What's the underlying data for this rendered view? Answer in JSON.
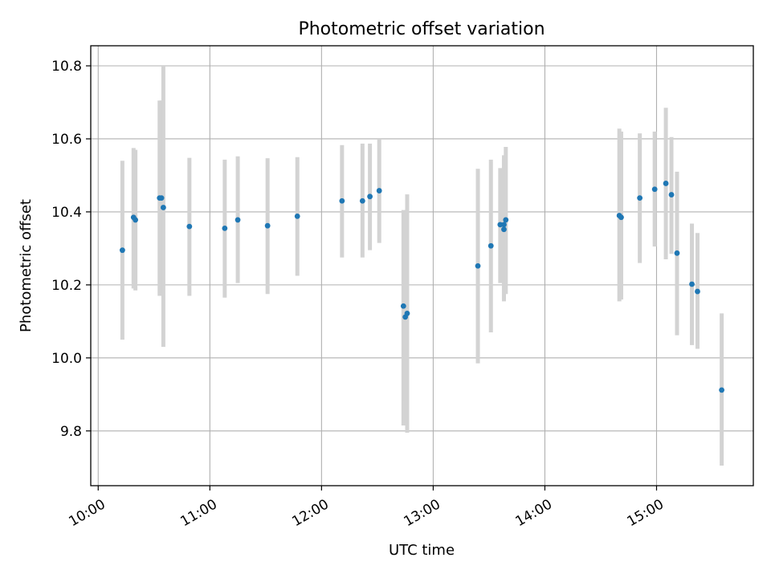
{
  "chart_data": {
    "type": "scatter",
    "title": "Photometric offset variation",
    "xlabel": "UTC time",
    "ylabel": "Photometric offset",
    "x_ticks": [
      "10:00",
      "11:00",
      "12:00",
      "13:00",
      "14:00",
      "15:00"
    ],
    "y_ticks": [
      "9.8",
      "10.0",
      "10.2",
      "10.4",
      "10.6",
      "10.8"
    ],
    "xlim": [
      "09:56",
      "15:52"
    ],
    "ylim": [
      9.65,
      10.855
    ],
    "grid": true,
    "point_color": "#1f77b4",
    "errorbar_color": "#d3d3d3",
    "points": [
      {
        "x": "10:13",
        "y": 10.295,
        "low": 10.05,
        "high": 10.54
      },
      {
        "x": "10:19",
        "y": 10.385,
        "low": 10.19,
        "high": 10.575
      },
      {
        "x": "10:20",
        "y": 10.378,
        "low": 10.185,
        "high": 10.57
      },
      {
        "x": "10:33",
        "y": 10.438,
        "low": 10.17,
        "high": 10.705
      },
      {
        "x": "10:34",
        "y": 10.438,
        "low": 10.17,
        "high": 10.705
      },
      {
        "x": "10:35",
        "y": 10.412,
        "low": 10.03,
        "high": 10.8
      },
      {
        "x": "10:49",
        "y": 10.36,
        "low": 10.17,
        "high": 10.548
      },
      {
        "x": "11:08",
        "y": 10.355,
        "low": 10.165,
        "high": 10.543
      },
      {
        "x": "11:15",
        "y": 10.378,
        "low": 10.205,
        "high": 10.552
      },
      {
        "x": "11:31",
        "y": 10.362,
        "low": 10.175,
        "high": 10.547
      },
      {
        "x": "11:47",
        "y": 10.388,
        "low": 10.225,
        "high": 10.55
      },
      {
        "x": "12:11",
        "y": 10.43,
        "low": 10.275,
        "high": 10.583
      },
      {
        "x": "12:22",
        "y": 10.43,
        "low": 10.275,
        "high": 10.587
      },
      {
        "x": "12:26",
        "y": 10.442,
        "low": 10.295,
        "high": 10.587
      },
      {
        "x": "12:31",
        "y": 10.458,
        "low": 10.315,
        "high": 10.6
      },
      {
        "x": "12:44",
        "y": 10.142,
        "low": 9.815,
        "high": 10.405
      },
      {
        "x": "12:45",
        "y": 10.112,
        "low": 9.88,
        "high": 10.4
      },
      {
        "x": "12:46",
        "y": 10.122,
        "low": 9.795,
        "high": 10.448
      },
      {
        "x": "13:24",
        "y": 10.252,
        "low": 9.985,
        "high": 10.518
      },
      {
        "x": "13:31",
        "y": 10.307,
        "low": 10.07,
        "high": 10.543
      },
      {
        "x": "13:36",
        "y": 10.365,
        "low": 10.205,
        "high": 10.52
      },
      {
        "x": "13:38",
        "y": 10.365,
        "low": 10.155,
        "high": 10.555
      },
      {
        "x": "13:38",
        "y": 10.352,
        "low": 10.16,
        "high": 10.545
      },
      {
        "x": "13:39",
        "y": 10.378,
        "low": 10.175,
        "high": 10.578
      },
      {
        "x": "14:40",
        "y": 10.39,
        "low": 10.155,
        "high": 10.628
      },
      {
        "x": "14:41",
        "y": 10.385,
        "low": 10.16,
        "high": 10.62
      },
      {
        "x": "14:51",
        "y": 10.438,
        "low": 10.26,
        "high": 10.615
      },
      {
        "x": "14:59",
        "y": 10.462,
        "low": 10.305,
        "high": 10.62
      },
      {
        "x": "15:05",
        "y": 10.478,
        "low": 10.27,
        "high": 10.685
      },
      {
        "x": "15:08",
        "y": 10.447,
        "low": 10.285,
        "high": 10.605
      },
      {
        "x": "15:11",
        "y": 10.287,
        "low": 10.062,
        "high": 10.51
      },
      {
        "x": "15:19",
        "y": 10.202,
        "low": 10.035,
        "high": 10.368
      },
      {
        "x": "15:22",
        "y": 10.182,
        "low": 10.025,
        "high": 10.342
      },
      {
        "x": "15:35",
        "y": 9.912,
        "low": 9.705,
        "high": 10.122
      }
    ]
  }
}
